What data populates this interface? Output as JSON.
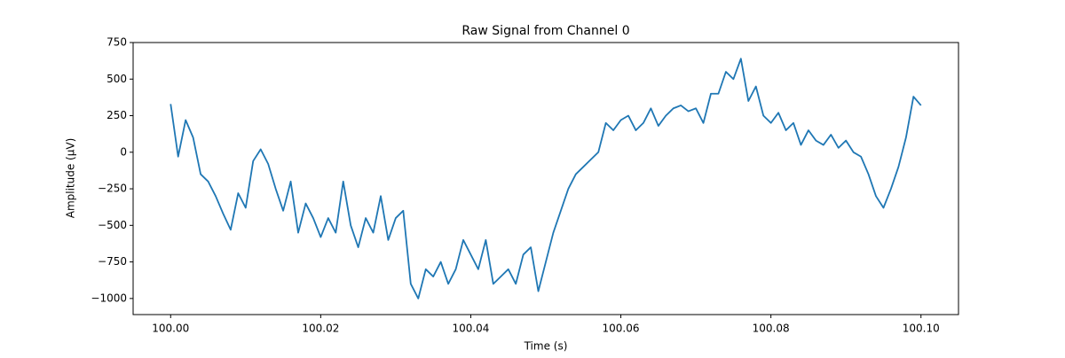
{
  "chart_data": {
    "type": "line",
    "title": "Raw Signal from Channel 0",
    "x_label": "Time (s)",
    "y_label": "Amplitude (µV)",
    "color": "#1f77b4",
    "x": [
      100.0,
      100.001,
      100.002,
      100.003,
      100.004,
      100.005,
      100.006,
      100.007,
      100.008,
      100.009,
      100.01,
      100.011,
      100.012,
      100.013,
      100.014,
      100.015,
      100.016,
      100.017,
      100.018,
      100.019,
      100.02,
      100.021,
      100.022,
      100.023,
      100.024,
      100.025,
      100.026,
      100.027,
      100.028,
      100.029,
      100.03,
      100.031,
      100.032,
      100.033,
      100.034,
      100.035,
      100.036,
      100.037,
      100.038,
      100.039,
      100.04,
      100.041,
      100.042,
      100.043,
      100.044,
      100.045,
      100.046,
      100.047,
      100.048,
      100.049,
      100.05,
      100.051,
      100.052,
      100.053,
      100.054,
      100.055,
      100.056,
      100.057,
      100.058,
      100.059,
      100.06,
      100.061,
      100.062,
      100.063,
      100.064,
      100.065,
      100.066,
      100.067,
      100.068,
      100.069,
      100.07,
      100.071,
      100.072,
      100.073,
      100.074,
      100.075,
      100.076,
      100.077,
      100.078,
      100.079,
      100.08,
      100.081,
      100.082,
      100.083,
      100.084,
      100.085,
      100.086,
      100.087,
      100.088,
      100.089,
      100.09,
      100.091,
      100.092,
      100.093,
      100.094,
      100.095,
      100.096,
      100.097,
      100.098,
      100.099,
      100.1
    ],
    "values": [
      330,
      -30,
      220,
      100,
      -150,
      -200,
      -300,
      -420,
      -530,
      -280,
      -380,
      -60,
      20,
      -80,
      -250,
      -400,
      -200,
      -550,
      -350,
      -450,
      -580,
      -450,
      -550,
      -200,
      -500,
      -650,
      -450,
      -550,
      -300,
      -600,
      -450,
      -400,
      -900,
      -1000,
      -800,
      -850,
      -750,
      -900,
      -800,
      -600,
      -700,
      -800,
      -600,
      -900,
      -850,
      -800,
      -900,
      -700,
      -650,
      -950,
      -750,
      -550,
      -400,
      -250,
      -150,
      -100,
      -50,
      0,
      200,
      150,
      220,
      250,
      150,
      200,
      300,
      180,
      250,
      300,
      320,
      280,
      300,
      200,
      400,
      400,
      550,
      500,
      640,
      350,
      450,
      250,
      200,
      270,
      150,
      200,
      50,
      150,
      80,
      50,
      120,
      30,
      80,
      0,
      -30,
      -150,
      -300,
      -380,
      -250,
      -100,
      100,
      380,
      320
    ],
    "xlim": [
      99.995,
      100.105
    ],
    "xticks": [
      {
        "value": 100,
        "label": "100.00"
      },
      100.02,
      100.04,
      100.06,
      100.08,
      {
        "value": 100.1,
        "label": "100.10"
      }
    ],
    "ylim": [
      -1110,
      750
    ],
    "yticks": [
      {
        "value": -1000,
        "label": "−1000"
      },
      {
        "value": -750,
        "label": "−750"
      },
      {
        "value": -500,
        "label": "−500"
      },
      {
        "value": -250,
        "label": "−250"
      },
      0,
      250,
      500,
      750
    ],
    "grid": false
  }
}
